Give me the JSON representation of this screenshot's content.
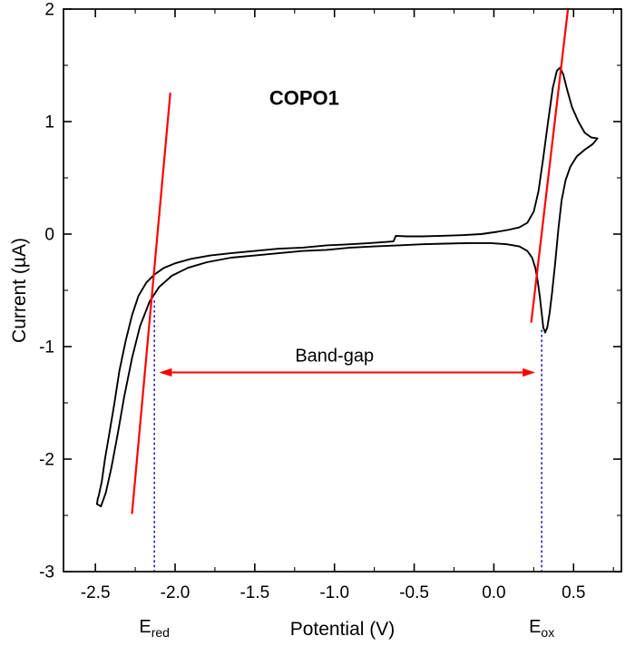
{
  "chart_data": {
    "type": "line",
    "title": "COPO1",
    "xlabel": "Potential (V)",
    "ylabel": "Current (µA)",
    "xlim": [
      -2.7,
      0.8
    ],
    "ylim": [
      -3,
      2
    ],
    "grid": false,
    "x_ticks": {
      "values": [
        -2.5,
        -2.0,
        -1.5,
        -1.0,
        -0.5,
        0.0,
        0.5
      ],
      "labels": [
        "-2.5",
        "-2.0",
        "-1.5",
        "-1.0",
        "-0.5",
        "0.0",
        "0.5"
      ],
      "minor": [
        -2.25,
        -1.75,
        -1.25,
        -0.75,
        -0.25,
        0.25,
        0.75
      ]
    },
    "y_ticks": {
      "values": [
        -3,
        -2,
        -1,
        0,
        1,
        2
      ],
      "labels": [
        "-3",
        "-2",
        "-1",
        "0",
        "1",
        "2"
      ],
      "minor": [
        -2.5,
        -1.5,
        -0.5,
        0.5,
        1.5
      ]
    },
    "colors": {
      "curve": "#000000",
      "tangent": "#ff0000",
      "dotted": "#2222cc",
      "arrow": "#ff0000",
      "frame": "#000000"
    },
    "series": [
      {
        "name": "cv-curve",
        "color": "#000000",
        "width": 1.9,
        "points": [
          [
            -2.48,
            -2.33
          ],
          [
            -2.46,
            -2.2
          ],
          [
            -2.44,
            -2.0
          ],
          [
            -2.41,
            -1.75
          ],
          [
            -2.38,
            -1.5
          ],
          [
            -2.35,
            -1.22
          ],
          [
            -2.31,
            -0.95
          ],
          [
            -2.27,
            -0.72
          ],
          [
            -2.23,
            -0.55
          ],
          [
            -2.18,
            -0.43
          ],
          [
            -2.13,
            -0.36
          ],
          [
            -2.07,
            -0.3
          ],
          [
            -2.0,
            -0.26
          ],
          [
            -1.9,
            -0.22
          ],
          [
            -1.78,
            -0.19
          ],
          [
            -1.65,
            -0.17
          ],
          [
            -1.5,
            -0.15
          ],
          [
            -1.35,
            -0.13
          ],
          [
            -1.2,
            -0.12
          ],
          [
            -1.05,
            -0.1
          ],
          [
            -0.9,
            -0.09
          ],
          [
            -0.78,
            -0.08
          ],
          [
            -0.68,
            -0.07
          ],
          [
            -0.63,
            -0.065
          ],
          [
            -0.615,
            -0.015
          ],
          [
            -0.55,
            -0.02
          ],
          [
            -0.45,
            -0.02
          ],
          [
            -0.33,
            -0.015
          ],
          [
            -0.2,
            -0.01
          ],
          [
            -0.08,
            0.0
          ],
          [
            0.02,
            0.02
          ],
          [
            0.1,
            0.04
          ],
          [
            0.16,
            0.06
          ],
          [
            0.21,
            0.1
          ],
          [
            0.25,
            0.2
          ],
          [
            0.28,
            0.38
          ],
          [
            0.31,
            0.68
          ],
          [
            0.34,
            1.0
          ],
          [
            0.37,
            1.3
          ],
          [
            0.395,
            1.45
          ],
          [
            0.415,
            1.48
          ],
          [
            0.435,
            1.42
          ],
          [
            0.46,
            1.28
          ],
          [
            0.49,
            1.13
          ],
          [
            0.53,
            1.0
          ],
          [
            0.57,
            0.9
          ],
          [
            0.61,
            0.86
          ],
          [
            0.65,
            0.85
          ],
          [
            0.62,
            0.8
          ],
          [
            0.57,
            0.75
          ],
          [
            0.52,
            0.69
          ],
          [
            0.48,
            0.6
          ],
          [
            0.45,
            0.48
          ],
          [
            0.425,
            0.3
          ],
          [
            0.405,
            0.05
          ],
          [
            0.385,
            -0.25
          ],
          [
            0.365,
            -0.52
          ],
          [
            0.35,
            -0.7
          ],
          [
            0.335,
            -0.83
          ],
          [
            0.322,
            -0.875
          ],
          [
            0.31,
            -0.83
          ],
          [
            0.3,
            -0.7
          ],
          [
            0.288,
            -0.55
          ],
          [
            0.275,
            -0.42
          ],
          [
            0.26,
            -0.3
          ],
          [
            0.24,
            -0.21
          ],
          [
            0.21,
            -0.15
          ],
          [
            0.16,
            -0.11
          ],
          [
            0.08,
            -0.09
          ],
          [
            -0.02,
            -0.08
          ],
          [
            -0.15,
            -0.08
          ],
          [
            -0.3,
            -0.085
          ],
          [
            -0.45,
            -0.09
          ],
          [
            -0.6,
            -0.1
          ],
          [
            -0.75,
            -0.11
          ],
          [
            -0.9,
            -0.12
          ],
          [
            -1.05,
            -0.14
          ],
          [
            -1.2,
            -0.15
          ],
          [
            -1.35,
            -0.17
          ],
          [
            -1.5,
            -0.19
          ],
          [
            -1.65,
            -0.21
          ],
          [
            -1.8,
            -0.25
          ],
          [
            -1.92,
            -0.3
          ],
          [
            -2.02,
            -0.37
          ],
          [
            -2.1,
            -0.47
          ],
          [
            -2.16,
            -0.6
          ],
          [
            -2.22,
            -0.82
          ],
          [
            -2.27,
            -1.1
          ],
          [
            -2.32,
            -1.45
          ],
          [
            -2.36,
            -1.78
          ],
          [
            -2.4,
            -2.08
          ],
          [
            -2.435,
            -2.3
          ],
          [
            -2.465,
            -2.42
          ],
          [
            -2.49,
            -2.4
          ],
          [
            -2.485,
            -2.35
          ],
          [
            -2.48,
            -2.33
          ]
        ]
      },
      {
        "name": "reduction-onset-tangent",
        "color": "#ff0000",
        "width": 2.2,
        "points": [
          [
            -2.27,
            -2.48
          ],
          [
            -2.03,
            1.25
          ]
        ]
      },
      {
        "name": "oxidation-onset-tangent",
        "color": "#ff0000",
        "width": 2.2,
        "points": [
          [
            0.235,
            -0.78
          ],
          [
            0.465,
            2.0
          ]
        ]
      }
    ],
    "vlines": [
      {
        "name": "ered-dotted-line",
        "x": -2.13,
        "y_from": -3,
        "y_to": -0.58
      },
      {
        "name": "eox-dotted-line",
        "x": 0.3,
        "y_from": -3,
        "y_to": -0.85
      }
    ],
    "arrow": {
      "y": -1.23,
      "x_from": -2.1,
      "x_to": 0.26,
      "label": "Band-gap",
      "label_x": -1.0,
      "color": "#ff0000"
    },
    "annotations": [
      {
        "name": "chart-title",
        "text": "COPO1",
        "x": -1.19,
        "y": 1.15,
        "bold": true,
        "size": 22
      }
    ],
    "onset_labels": [
      {
        "name": "ered-label",
        "main": "E",
        "sub": "red",
        "x": -2.13
      },
      {
        "name": "eox-label",
        "main": "E",
        "sub": "ox",
        "x": 0.3
      }
    ]
  }
}
